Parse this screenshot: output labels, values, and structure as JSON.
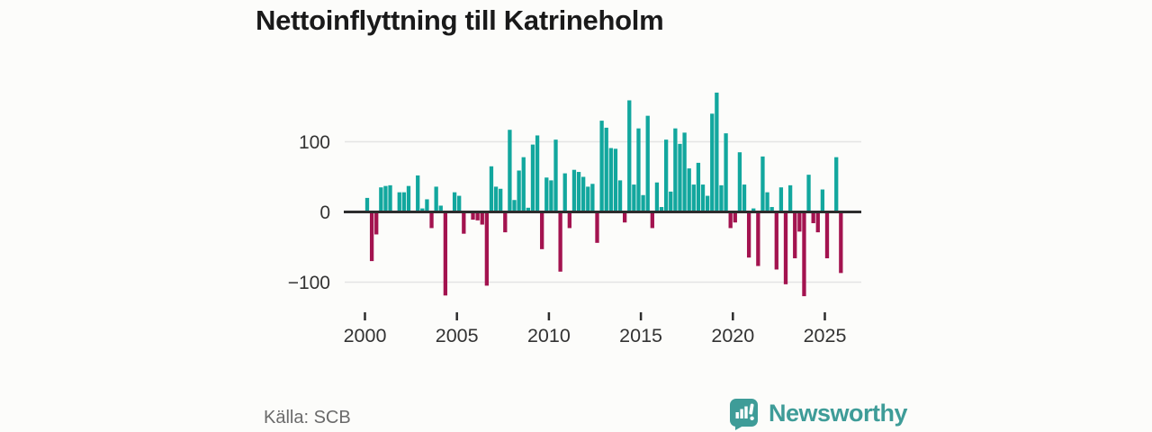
{
  "title": "Nettoinflyttning till Katrineholm",
  "source": "Källa: SCB",
  "branding": {
    "wordmark": "Newsworthy",
    "logo_icon": "bar-chart-speech-bubble-icon"
  },
  "colors": {
    "background": "#FCFCFA",
    "title_text": "#1A1A1A",
    "axis_line": "#2D2D2D",
    "gridline": "#E4E4E4",
    "tick_text": "#333333",
    "source_text": "#6A6A6A",
    "brand_teal": "#3E9C98",
    "bar_positive": "#12A79E",
    "bar_negative": "#A3134F"
  },
  "chart_data": {
    "type": "bar",
    "title": "Nettoinflyttning till Katrineholm",
    "frequency": "quarterly",
    "start_year": 2000,
    "values": [
      20,
      -70,
      -32,
      35,
      37,
      38,
      0,
      28,
      28,
      37,
      0,
      52,
      5,
      18,
      -23,
      36,
      9,
      -119,
      0,
      28,
      23,
      -31,
      0,
      -11,
      -12,
      -18,
      -105,
      65,
      36,
      33,
      -29,
      117,
      17,
      59,
      78,
      6,
      96,
      109,
      -53,
      49,
      45,
      103,
      -85,
      55,
      -23,
      60,
      57,
      50,
      36,
      40,
      -44,
      130,
      120,
      91,
      90,
      45,
      -15,
      159,
      39,
      119,
      24,
      137,
      -23,
      42,
      7,
      103,
      29,
      119,
      97,
      113,
      62,
      39,
      70,
      39,
      23,
      140,
      170,
      38,
      112,
      -23,
      -15,
      85,
      39,
      -65,
      5,
      -77,
      79,
      28,
      7,
      -82,
      35,
      -103,
      38,
      -66,
      -28,
      -120,
      53,
      -16,
      -29,
      32,
      -66,
      0,
      78,
      -87
    ],
    "positive_color": "#12A79E",
    "negative_color": "#A3134F",
    "x_tick_labels": [
      "2000",
      "2005",
      "2010",
      "2015",
      "2020",
      "2025"
    ],
    "y_ticks": [
      100,
      0,
      -100
    ],
    "y_tick_labels": [
      "100",
      "0",
      "−100"
    ],
    "ylim": [
      -130,
      180
    ],
    "grid": "horizontal",
    "legend": "none",
    "xlabel": "",
    "ylabel": ""
  }
}
